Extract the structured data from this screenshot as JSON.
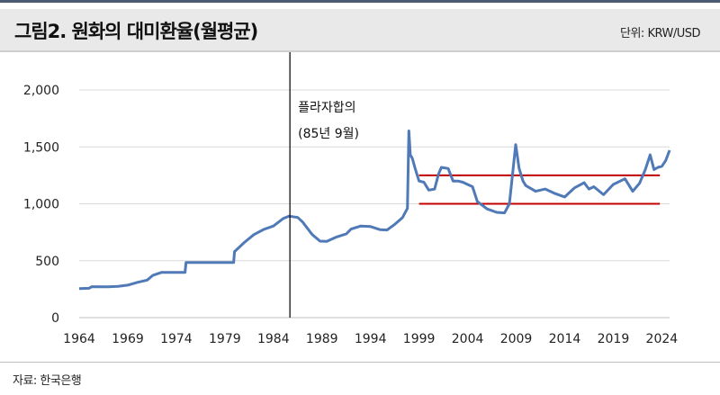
{
  "header": {
    "title": "그림2. 원화의 대미환율(월평균)",
    "unit": "단위: KRW/USD"
  },
  "footer": {
    "source": "자료: 한국은행"
  },
  "colors": {
    "line": "#4f79b7",
    "refline": "#c00000",
    "vline": "#000000",
    "grid": "#d9d9d9"
  },
  "chart_data": {
    "type": "line",
    "x_axis": {
      "ticks": [
        "1964",
        "1969",
        "1974",
        "1979",
        "1984",
        "1989",
        "1994",
        "1999",
        "2004",
        "2009",
        "2014",
        "2019",
        "2024"
      ],
      "range": [
        1964,
        2024.8
      ]
    },
    "y_axis": {
      "ticks": [
        "0",
        "500",
        "1,000",
        "1,500",
        "2,000"
      ],
      "range": [
        0,
        2000
      ]
    },
    "grid": "horizontal",
    "series": [
      {
        "values": [
          [
            1964.0,
            255
          ],
          [
            1965.0,
            258
          ],
          [
            1965.3,
            272
          ],
          [
            1967.0,
            270
          ],
          [
            1968.0,
            275
          ],
          [
            1969.0,
            285
          ],
          [
            1970.0,
            310
          ],
          [
            1971.0,
            330
          ],
          [
            1971.6,
            372
          ],
          [
            1972.5,
            398
          ],
          [
            1974.9,
            398
          ],
          [
            1975.0,
            484
          ],
          [
            1979.9,
            484
          ],
          [
            1980.0,
            580
          ],
          [
            1980.5,
            620
          ],
          [
            1981.0,
            660
          ],
          [
            1982.0,
            730
          ],
          [
            1983.0,
            775
          ],
          [
            1984.0,
            805
          ],
          [
            1985.0,
            870
          ],
          [
            1985.6,
            892
          ],
          [
            1986.5,
            880
          ],
          [
            1987.0,
            840
          ],
          [
            1988.0,
            730
          ],
          [
            1988.8,
            672
          ],
          [
            1989.5,
            670
          ],
          [
            1990.5,
            708
          ],
          [
            1991.5,
            735
          ],
          [
            1992.0,
            778
          ],
          [
            1993.0,
            805
          ],
          [
            1994.0,
            800
          ],
          [
            1995.0,
            772
          ],
          [
            1995.7,
            770
          ],
          [
            1996.5,
            820
          ],
          [
            1997.3,
            880
          ],
          [
            1997.8,
            960
          ],
          [
            1997.95,
            1640
          ],
          [
            1998.1,
            1430
          ],
          [
            1998.3,
            1400
          ],
          [
            1998.6,
            1310
          ],
          [
            1999.0,
            1200
          ],
          [
            1999.5,
            1190
          ],
          [
            2000.0,
            1120
          ],
          [
            2000.6,
            1130
          ],
          [
            2001.0,
            1260
          ],
          [
            2001.3,
            1320
          ],
          [
            2002.0,
            1310
          ],
          [
            2002.5,
            1200
          ],
          [
            2003.0,
            1200
          ],
          [
            2003.5,
            1190
          ],
          [
            2004.0,
            1170
          ],
          [
            2004.5,
            1150
          ],
          [
            2005.0,
            1020
          ],
          [
            2006.0,
            955
          ],
          [
            2007.0,
            925
          ],
          [
            2007.8,
            920
          ],
          [
            2008.3,
            1000
          ],
          [
            2008.8,
            1400
          ],
          [
            2008.95,
            1520
          ],
          [
            2009.3,
            1310
          ],
          [
            2009.7,
            1200
          ],
          [
            2010.0,
            1160
          ],
          [
            2011.0,
            1110
          ],
          [
            2012.0,
            1130
          ],
          [
            2013.0,
            1090
          ],
          [
            2014.0,
            1060
          ],
          [
            2015.0,
            1140
          ],
          [
            2016.0,
            1185
          ],
          [
            2016.5,
            1130
          ],
          [
            2017.0,
            1150
          ],
          [
            2018.0,
            1080
          ],
          [
            2019.0,
            1170
          ],
          [
            2020.2,
            1220
          ],
          [
            2021.0,
            1110
          ],
          [
            2021.7,
            1180
          ],
          [
            2022.3,
            1300
          ],
          [
            2022.8,
            1430
          ],
          [
            2023.2,
            1300
          ],
          [
            2023.6,
            1320
          ],
          [
            2024.0,
            1330
          ],
          [
            2024.4,
            1380
          ],
          [
            2024.8,
            1470
          ]
        ]
      }
    ],
    "reference_lines": [
      {
        "y": 1250,
        "x_range": [
          1999.0,
          2023.8
        ]
      },
      {
        "y": 1000,
        "x_range": [
          1999.0,
          2023.8
        ]
      }
    ],
    "vertical_marker": {
      "x": 1985.7
    },
    "annotation": {
      "line1": "플라자합의",
      "line2": "(85년 9월)"
    }
  }
}
